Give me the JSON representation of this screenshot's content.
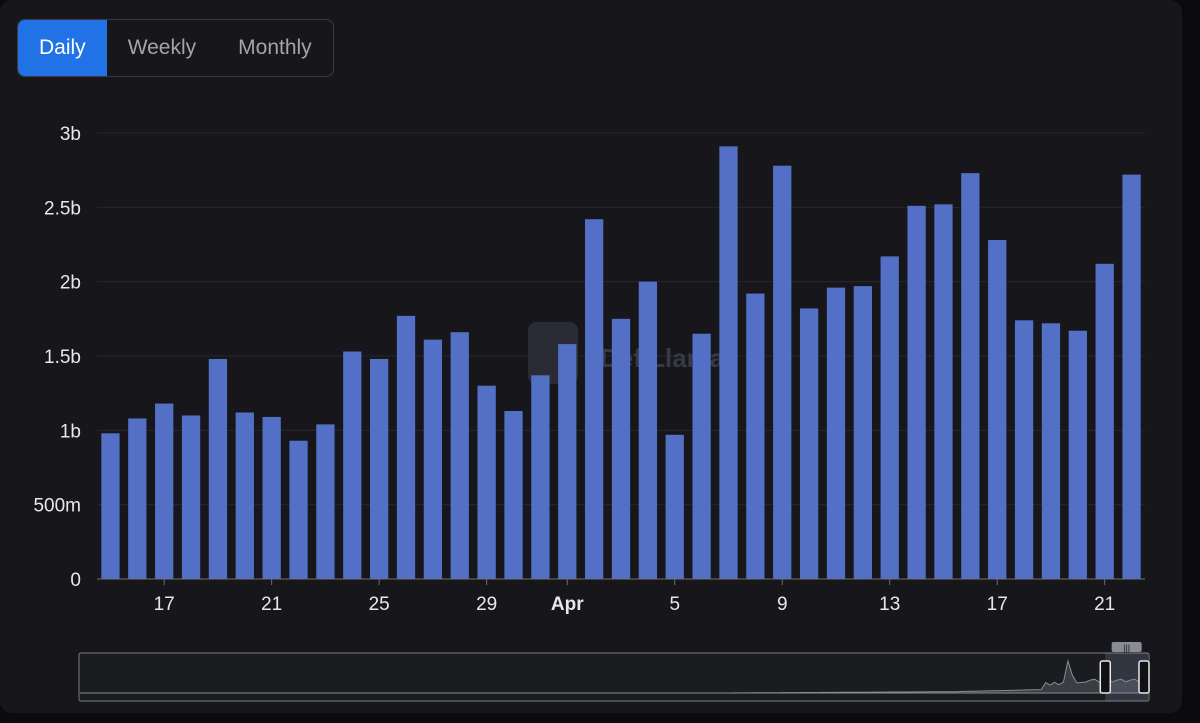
{
  "tabs": [
    {
      "label": "Daily",
      "active": true
    },
    {
      "label": "Weekly",
      "active": false
    },
    {
      "label": "Monthly",
      "active": false
    }
  ],
  "watermark": "DefiLlama",
  "colors": {
    "bar": "#5470c6",
    "accent": "#2172e5",
    "background": "#17171b"
  },
  "chart_data": {
    "type": "bar",
    "title": "",
    "xlabel": "",
    "ylabel": "",
    "ylim": [
      0,
      3000000000
    ],
    "y_ticks": [
      {
        "value": 0,
        "label": "0"
      },
      {
        "value": 500000000,
        "label": "500m"
      },
      {
        "value": 1000000000,
        "label": "1b"
      },
      {
        "value": 1500000000,
        "label": "1.5b"
      },
      {
        "value": 2000000000,
        "label": "2b"
      },
      {
        "value": 2500000000,
        "label": "2.5b"
      },
      {
        "value": 3000000000,
        "label": "3b"
      }
    ],
    "categories": [
      "Mar 15",
      "Mar 16",
      "Mar 17",
      "Mar 18",
      "Mar 19",
      "Mar 20",
      "Mar 21",
      "Mar 22",
      "Mar 23",
      "Mar 24",
      "Mar 25",
      "Mar 26",
      "Mar 27",
      "Mar 28",
      "Mar 29",
      "Mar 30",
      "Mar 31",
      "Apr 1",
      "Apr 2",
      "Apr 3",
      "Apr 4",
      "Apr 5",
      "Apr 6",
      "Apr 7",
      "Apr 8",
      "Apr 9",
      "Apr 10",
      "Apr 11",
      "Apr 12",
      "Apr 13",
      "Apr 14",
      "Apr 15",
      "Apr 16",
      "Apr 17",
      "Apr 18",
      "Apr 19",
      "Apr 20",
      "Apr 21",
      "Apr 22"
    ],
    "values": [
      980000000,
      1080000000,
      1180000000,
      1100000000,
      1480000000,
      1120000000,
      1090000000,
      930000000,
      1040000000,
      1530000000,
      1480000000,
      1770000000,
      1610000000,
      1660000000,
      1300000000,
      1130000000,
      1370000000,
      1580000000,
      2420000000,
      1750000000,
      2000000000,
      970000000,
      1650000000,
      2910000000,
      1920000000,
      2780000000,
      1820000000,
      1960000000,
      1970000000,
      2170000000,
      2510000000,
      2520000000,
      2730000000,
      2280000000,
      1740000000,
      1720000000,
      1670000000,
      2120000000,
      2720000000
    ],
    "x_ticks": [
      {
        "index": 2,
        "label": "17",
        "bold": false
      },
      {
        "index": 6,
        "label": "21",
        "bold": false
      },
      {
        "index": 10,
        "label": "25",
        "bold": false
      },
      {
        "index": 14,
        "label": "29",
        "bold": false
      },
      {
        "index": 17,
        "label": "Apr",
        "bold": true
      },
      {
        "index": 21,
        "label": "5",
        "bold": false
      },
      {
        "index": 25,
        "label": "9",
        "bold": false
      },
      {
        "index": 29,
        "label": "13",
        "bold": false
      },
      {
        "index": 33,
        "label": "17",
        "bold": false
      },
      {
        "index": 37,
        "label": "21",
        "bold": false
      }
    ],
    "grid": true,
    "legend": "none"
  },
  "data_zoom": {
    "range_start": 0.96,
    "range_end": 1.0
  }
}
